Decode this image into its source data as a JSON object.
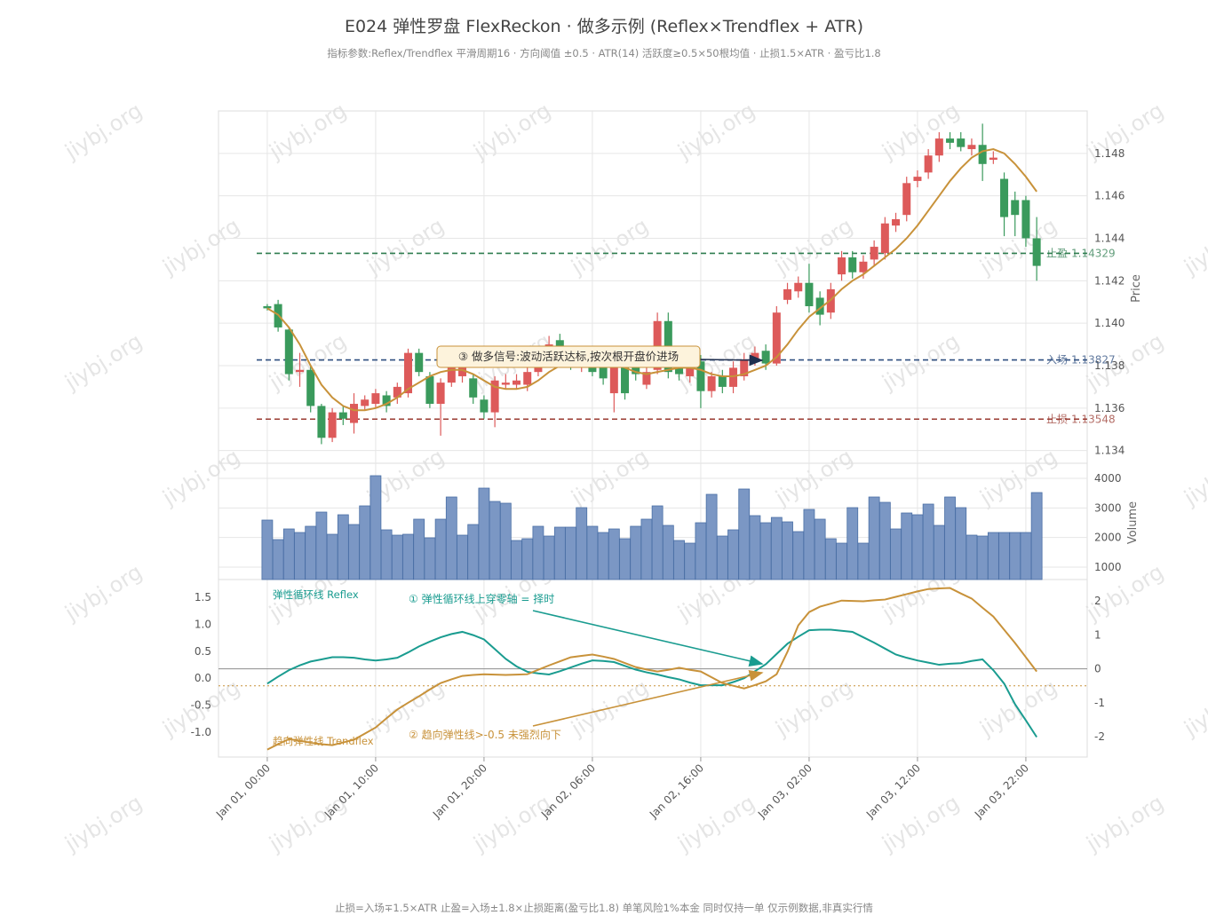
{
  "title": "E024 弹性罗盘 FlexReckon · 做多示例 (Reflex×Trendflex + ATR)",
  "subtitle": "指标参数:Reflex/Trendflex 平滑周期16 · 方向阈值 ±0.5 · ATR(14) 活跃度≥0.5×50根均值 · 止损1.5×ATR · 盈亏比1.8",
  "footer": "止损=入场∓1.5×ATR  止盈=入场±1.8×止损距离(盈亏比1.8)  单笔风险1%本金  同时仅持一单  仅示例数据,非真实行情",
  "watermark": "jiybj.org",
  "chart_data": [
    {
      "type": "candlestick",
      "ylabel": "Price",
      "x": [
        0,
        1,
        2,
        3,
        4,
        5,
        6,
        7,
        8,
        9,
        10,
        11,
        12,
        13,
        14,
        15,
        16,
        17,
        18,
        19,
        20,
        21,
        22,
        23,
        24,
        25,
        26,
        27,
        28,
        29,
        30,
        31,
        32,
        33,
        34,
        35,
        36,
        37,
        38,
        39,
        40,
        41,
        42,
        43,
        44,
        45,
        46,
        47,
        48,
        49,
        50,
        51,
        52,
        53,
        54,
        55,
        56,
        57,
        58,
        59,
        60,
        61,
        62,
        63,
        64,
        65,
        66,
        67,
        68,
        69,
        70,
        71
      ],
      "xlim": [
        -4.5,
        75.66
      ],
      "xticks": [
        {
          "value": 0,
          "label": "Jan 01, 00:00"
        },
        {
          "value": 10,
          "label": "Jan 01, 10:00"
        },
        {
          "value": 20,
          "label": "Jan 01, 20:00"
        },
        {
          "value": 30,
          "label": "Jan 02, 06:00"
        },
        {
          "value": 40,
          "label": "Jan 02, 16:00"
        },
        {
          "value": 50,
          "label": "Jan 03, 02:00"
        },
        {
          "value": 60,
          "label": "Jan 03, 12:00"
        },
        {
          "value": 70,
          "label": "Jan 03, 22:00"
        }
      ],
      "ylim": [
        1.1334,
        1.15
      ],
      "yticks": [
        1.134,
        1.136,
        1.138,
        {
          "value": 1.14,
          "label": "1.140"
        },
        1.142,
        1.144,
        1.146,
        1.148
      ],
      "grid": true,
      "up_color": "#dd5a5a",
      "down_color": "#3a9a5c",
      "open": [
        1.1408,
        1.1409,
        1.1397,
        1.1377,
        1.1378,
        1.1361,
        1.1346,
        1.1358,
        1.1353,
        1.1361,
        1.1362,
        1.1366,
        1.1365,
        1.1367,
        1.1386,
        1.1375,
        1.1362,
        1.1372,
        1.1375,
        1.1374,
        1.1364,
        1.1358,
        1.1371,
        1.1371,
        1.1371,
        1.1377,
        1.1382,
        1.1392,
        1.1386,
        1.138,
        1.1384,
        1.1379,
        1.1367,
        1.138,
        1.138,
        1.1371,
        1.1378,
        1.1401,
        1.138,
        1.1375,
        1.1382,
        1.1368,
        1.1375,
        1.137,
        1.1375,
        1.1382,
        1.1387,
        1.1381,
        1.1411,
        1.1415,
        1.1419,
        1.1412,
        1.1405,
        1.1423,
        1.1431,
        1.1424,
        1.143,
        1.1433,
        1.1446,
        1.1451,
        1.1467,
        1.1471,
        1.1479,
        1.1487,
        1.1487,
        1.1482,
        1.1484,
        1.1477,
        1.1468,
        1.1458,
        1.1458,
        1.144
      ],
      "high": [
        1.1409,
        1.1411,
        1.1398,
        1.1386,
        1.138,
        1.1362,
        1.136,
        1.1361,
        1.1367,
        1.1366,
        1.1369,
        1.1368,
        1.1372,
        1.1388,
        1.1388,
        1.1377,
        1.1374,
        1.1387,
        1.1389,
        1.1376,
        1.1366,
        1.1375,
        1.1376,
        1.1376,
        1.138,
        1.1386,
        1.1394,
        1.1395,
        1.1389,
        1.1386,
        1.1386,
        1.1381,
        1.1383,
        1.1383,
        1.1382,
        1.138,
        1.1405,
        1.1405,
        1.1383,
        1.1385,
        1.1385,
        1.1377,
        1.1378,
        1.1382,
        1.1386,
        1.1389,
        1.139,
        1.1408,
        1.1419,
        1.1422,
        1.1428,
        1.1415,
        1.1419,
        1.1434,
        1.1434,
        1.1432,
        1.1439,
        1.145,
        1.1452,
        1.1469,
        1.1472,
        1.1482,
        1.149,
        1.149,
        1.149,
        1.1487,
        1.1494,
        1.1481,
        1.1471,
        1.1462,
        1.146,
        1.145
      ],
      "low": [
        1.1406,
        1.1396,
        1.1373,
        1.137,
        1.1358,
        1.1343,
        1.1344,
        1.1352,
        1.1348,
        1.1359,
        1.136,
        1.1358,
        1.1362,
        1.1365,
        1.1375,
        1.136,
        1.1347,
        1.137,
        1.1372,
        1.1362,
        1.1355,
        1.1351,
        1.1369,
        1.1369,
        1.1368,
        1.1375,
        1.138,
        1.1381,
        1.1378,
        1.1377,
        1.1375,
        1.1371,
        1.1358,
        1.1364,
        1.1373,
        1.1369,
        1.1376,
        1.1374,
        1.1373,
        1.1372,
        1.136,
        1.1365,
        1.1367,
        1.1367,
        1.1373,
        1.138,
        1.1378,
        1.138,
        1.1409,
        1.1412,
        1.1405,
        1.1399,
        1.1402,
        1.142,
        1.1421,
        1.1421,
        1.1427,
        1.143,
        1.1443,
        1.1448,
        1.1464,
        1.1468,
        1.1476,
        1.1482,
        1.1481,
        1.1479,
        1.1467,
        1.1475,
        1.1441,
        1.1441,
        1.1436,
        1.142
      ],
      "close": [
        1.1407,
        1.1398,
        1.1376,
        1.1378,
        1.1361,
        1.1346,
        1.1358,
        1.1355,
        1.1362,
        1.1364,
        1.1367,
        1.1361,
        1.137,
        1.1386,
        1.1377,
        1.1362,
        1.1372,
        1.1384,
        1.1386,
        1.1365,
        1.1358,
        1.1373,
        1.1372,
        1.1373,
        1.1377,
        1.1383,
        1.139,
        1.1384,
        1.138,
        1.1384,
        1.1377,
        1.1374,
        1.138,
        1.1367,
        1.1376,
        1.1377,
        1.1401,
        1.1377,
        1.1376,
        1.1382,
        1.1368,
        1.1375,
        1.137,
        1.1379,
        1.1383,
        1.1386,
        1.1381,
        1.1405,
        1.1416,
        1.1419,
        1.1408,
        1.1404,
        1.1416,
        1.1431,
        1.1424,
        1.1429,
        1.1436,
        1.1447,
        1.1449,
        1.1466,
        1.1469,
        1.1479,
        1.1487,
        1.1485,
        1.1483,
        1.1484,
        1.1475,
        1.1478,
        1.145,
        1.1451,
        1.144,
        1.1427
      ],
      "series": [
        {
          "color": "#c8923a",
          "values": [
            1.1407,
            1.1404,
            1.1398,
            1.139,
            1.138,
            1.1371,
            1.1365,
            1.1361,
            1.1359,
            1.1359,
            1.136,
            1.1362,
            1.1365,
            1.1369,
            1.1372,
            1.1375,
            1.1377,
            1.1378,
            1.1378,
            1.1376,
            1.1373,
            1.137,
            1.1369,
            1.1369,
            1.137,
            1.1373,
            1.1377,
            1.138,
            1.1382,
            1.1384,
            1.1384,
            1.1383,
            1.1381,
            1.1379,
            1.1377,
            1.1376,
            1.1377,
            1.1378,
            1.1379,
            1.1379,
            1.1378,
            1.1376,
            1.1375,
            1.1375,
            1.1376,
            1.1378,
            1.138,
            1.1384,
            1.139,
            1.1397,
            1.1403,
            1.1407,
            1.1411,
            1.1416,
            1.142,
            1.1423,
            1.1427,
            1.1431,
            1.1435,
            1.144,
            1.1446,
            1.1453,
            1.146,
            1.1467,
            1.1473,
            1.1478,
            1.1481,
            1.1482,
            1.148,
            1.1475,
            1.1469,
            1.1462
          ]
        }
      ],
      "levels": [
        {
          "name": "止盈",
          "value": 1.14329,
          "color": "#2e7d4f"
        },
        {
          "name": "入场",
          "value": 1.13827,
          "color": "#2f4f80"
        },
        {
          "name": "止损",
          "value": 1.13548,
          "color": "#9a3b32"
        }
      ],
      "annotation": "③ 做多信号:波动活跃达标,按次根开盘价进场"
    },
    {
      "type": "bar",
      "ylabel": "Volume",
      "ylim": [
        580,
        4510
      ],
      "yticks": [
        1000,
        2000,
        3000,
        4000
      ],
      "color": "#7b97c4",
      "values": [
        2590,
        1930,
        2290,
        2170,
        2380,
        2860,
        2110,
        2770,
        2440,
        3070,
        4090,
        2260,
        2080,
        2110,
        2620,
        1990,
        2620,
        3370,
        2080,
        2440,
        3670,
        3220,
        3160,
        1900,
        1960,
        2380,
        2050,
        2350,
        2350,
        3010,
        2380,
        2170,
        2290,
        1960,
        2380,
        2620,
        3070,
        2410,
        1900,
        1810,
        2500,
        3460,
        2050,
        2260,
        3640,
        2740,
        2500,
        2680,
        2530,
        2200,
        2950,
        2620,
        1960,
        1810,
        3010,
        1810,
        3370,
        3190,
        2290,
        2830,
        2770,
        3130,
        2410,
        3370,
        3010,
        2080,
        2050,
        2170,
        2170,
        2170,
        2170,
        3520
      ]
    },
    {
      "type": "line",
      "ylim": [
        -1.46,
        1.83
      ],
      "yticks": [
        1.5,
        {
          "value": 1,
          "label": "1.0"
        },
        0.5,
        {
          "value": 0,
          "label": "0.0"
        },
        -0.5,
        {
          "value": -1,
          "label": "-1.0"
        }
      ],
      "y2lim": [
        -2.6,
        2.63
      ],
      "y2ticks": [
        2,
        1,
        0,
        -1,
        -2
      ],
      "threshold": -0.5,
      "series": [
        {
          "name": "弹性循环线 Reflex",
          "color": "#1a9c90",
          "values": [
            -0.1,
            0.03,
            0.15,
            0.24,
            0.31,
            0.35,
            0.39,
            0.39,
            0.38,
            0.35,
            0.33,
            0.35,
            0.38,
            0.48,
            0.59,
            0.68,
            0.76,
            0.82,
            0.86,
            0.8,
            0.72,
            0.54,
            0.36,
            0.22,
            0.12,
            0.09,
            0.07,
            0.13,
            0.2,
            0.27,
            0.33,
            0.32,
            0.3,
            0.23,
            0.16,
            0.11,
            0.07,
            0.02,
            -0.02,
            -0.08,
            -0.13,
            -0.13,
            -0.13,
            -0.07,
            0,
            0.13,
            0.26,
            0.45,
            0.64,
            0.77,
            0.89,
            0.9,
            0.9,
            0.88,
            0.86,
            0.76,
            0.66,
            0.55,
            0.44,
            0.38,
            0.33,
            0.29,
            0.25,
            0.27,
            0.28,
            0.32,
            0.35,
            0.15,
            -0.1,
            -0.48,
            -0.78,
            -1.09
          ]
        },
        {
          "name": "趋向弹性线 Trendflex",
          "color": "#c8923a",
          "axis": "y2",
          "values": [
            -2.38,
            -2.22,
            -2.07,
            -2.12,
            -2.18,
            -2.22,
            -2.25,
            -2.17,
            -2.09,
            -1.91,
            -1.73,
            -1.46,
            -1.2,
            -1,
            -0.81,
            -0.61,
            -0.42,
            -0.31,
            -0.21,
            -0.18,
            -0.16,
            -0.17,
            -0.18,
            -0.17,
            -0.16,
            -0.03,
            0.1,
            0.22,
            0.34,
            0.38,
            0.42,
            0.36,
            0.29,
            0.17,
            0.05,
            -0.02,
            -0.08,
            -0.03,
            0.03,
            -0.03,
            -0.08,
            -0.25,
            -0.42,
            -0.5,
            -0.58,
            -0.48,
            -0.37,
            -0.16,
            0.5,
            1.28,
            1.67,
            1.83,
            1.92,
            2.01,
            2,
            1.99,
            2.02,
            2.04,
            2.12,
            2.2,
            2.28,
            2.35,
            2.37,
            2.38,
            2.22,
            2.07,
            1.8,
            1.54,
            1.15,
            0.76,
            0.34,
            -0.08
          ]
        }
      ],
      "annotations": [
        "① 弹性循环线上穿零轴 = 择时",
        "② 趋向弹性线>-0.5 未强烈向下"
      ]
    }
  ]
}
